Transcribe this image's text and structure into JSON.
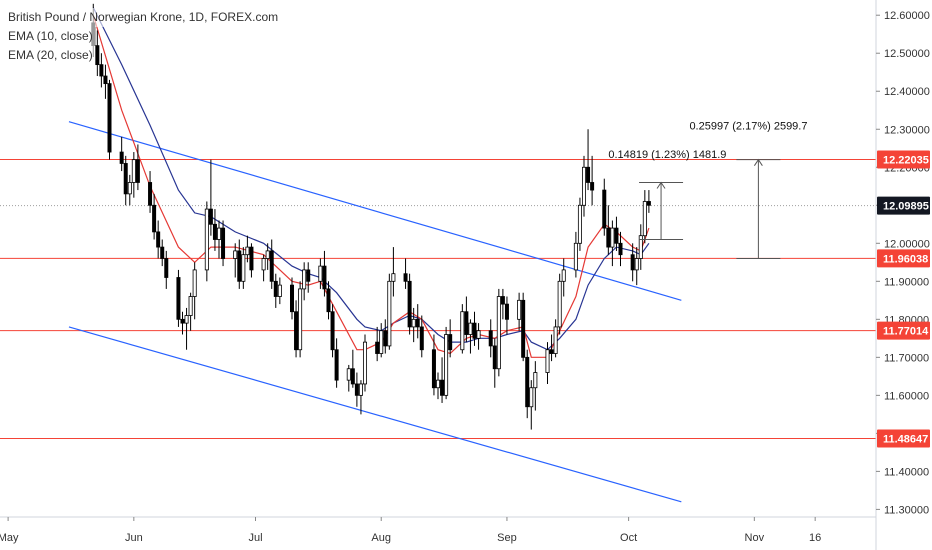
{
  "title": "British Pound / Norwegian Krone, 1D, FOREX.com",
  "indicators": [
    "EMA (10, close)",
    "EMA (20, close)"
  ],
  "colors": {
    "up_candle_fill": "#ffffff",
    "down_candle_fill": "#000000",
    "candle_outline": "#000000",
    "ema10": "#e53935",
    "ema20": "#283593",
    "hline": "#f44336",
    "channel": "#2962ff",
    "current_line": "#9e9e9e",
    "tag_red": "#f44336",
    "tag_black": "#131722",
    "measure": "#555555"
  },
  "chart_data": {
    "type": "candlestick",
    "symbol": "British Pound / Norwegian Krone",
    "timeframe": "1D",
    "source": "FOREX.com",
    "yrange": [
      11.28,
      12.64
    ],
    "x_ticks": [
      {
        "label": "May",
        "day": 0
      },
      {
        "label": "Jun",
        "day": 31
      },
      {
        "label": "Jul",
        "day": 61
      },
      {
        "label": "Aug",
        "day": 92
      },
      {
        "label": "Sep",
        "day": 123
      },
      {
        "label": "Oct",
        "day": 153
      },
      {
        "label": "Nov",
        "day": 184
      },
      {
        "label": "16",
        "day": 199
      }
    ],
    "xrange": [
      -2,
      214
    ],
    "y_ticks": [
      "12.60000",
      "12.50000",
      "12.40000",
      "12.30000",
      "12.20000",
      "12.10000",
      "12.00000",
      "11.90000",
      "11.80000",
      "11.70000",
      "11.60000",
      "11.50000",
      "11.40000",
      "11.30000"
    ],
    "horizontal_levels": [
      {
        "value": 12.22035,
        "label": "12.22035"
      },
      {
        "value": 11.96038,
        "label": "11.96038"
      },
      {
        "value": 11.77014,
        "label": "11.77014"
      },
      {
        "value": 11.48647,
        "label": "11.48647"
      }
    ],
    "current_price": {
      "value": 12.09895,
      "label": "12.09895"
    },
    "channel_lines": [
      {
        "x1": 15,
        "y1": 12.32,
        "x2": 166,
        "y2": 11.85
      },
      {
        "x1": 15,
        "y1": 11.78,
        "x2": 166,
        "y2": 11.32
      }
    ],
    "measurements": [
      {
        "x": 161,
        "from": 12.01,
        "to": 12.16,
        "label": "0.14819 (1.23%) 1481.9",
        "label_x": 148,
        "label_y": 12.235
      },
      {
        "x": 185,
        "from": 11.96,
        "to": 12.22,
        "label": "0.25997 (2.17%) 2599.7",
        "label_x": 168,
        "label_y": 12.31
      }
    ],
    "candles": [
      [
        21,
        12.58,
        12.63,
        12.49,
        12.52
      ],
      [
        22,
        12.52,
        12.56,
        12.44,
        12.47
      ],
      [
        23,
        12.47,
        12.5,
        12.41,
        12.44
      ],
      [
        24,
        12.44,
        12.47,
        12.38,
        12.42
      ],
      [
        25,
        12.42,
        12.43,
        12.22,
        12.24
      ],
      [
        28,
        12.24,
        12.28,
        12.19,
        12.21
      ],
      [
        29,
        12.21,
        12.23,
        12.1,
        12.13
      ],
      [
        30,
        12.13,
        12.18,
        12.1,
        12.16
      ],
      [
        31,
        12.16,
        12.24,
        12.12,
        12.22
      ],
      [
        32,
        12.22,
        12.26,
        12.14,
        12.16
      ],
      [
        35,
        12.16,
        12.19,
        12.08,
        12.1
      ],
      [
        36,
        12.1,
        12.13,
        12.01,
        12.03
      ],
      [
        37,
        12.03,
        12.06,
        11.96,
        11.99
      ],
      [
        38,
        11.99,
        12.01,
        11.94,
        11.96
      ],
      [
        39,
        11.96,
        11.98,
        11.88,
        11.91
      ],
      [
        42,
        11.91,
        11.93,
        11.78,
        11.8
      ],
      [
        43,
        11.8,
        11.82,
        11.76,
        11.79
      ],
      [
        44,
        11.79,
        11.83,
        11.72,
        11.81
      ],
      [
        45,
        11.81,
        11.87,
        11.77,
        11.86
      ],
      [
        46,
        11.86,
        11.95,
        11.8,
        11.93
      ],
      [
        49,
        11.93,
        12.11,
        11.9,
        12.09
      ],
      [
        50,
        12.09,
        12.22,
        12.02,
        12.05
      ],
      [
        51,
        12.05,
        12.09,
        11.98,
        12.01
      ],
      [
        52,
        12.01,
        12.06,
        11.96,
        12.04
      ],
      [
        53,
        12.04,
        12.06,
        11.94,
        11.96
      ],
      [
        56,
        11.96,
        12.0,
        11.91,
        11.98
      ],
      [
        57,
        11.98,
        12.01,
        11.88,
        11.9
      ],
      [
        58,
        11.9,
        11.99,
        11.88,
        11.97
      ],
      [
        59,
        11.97,
        12.02,
        11.95,
        11.99
      ],
      [
        60,
        11.99,
        12.0,
        11.91,
        11.93
      ],
      [
        63,
        11.93,
        11.97,
        11.9,
        11.96
      ],
      [
        64,
        11.96,
        12.0,
        11.93,
        11.98
      ],
      [
        65,
        11.98,
        12.01,
        11.88,
        11.9
      ],
      [
        66,
        11.9,
        11.92,
        11.83,
        11.86
      ],
      [
        67,
        11.86,
        11.91,
        11.84,
        11.89
      ],
      [
        70,
        11.89,
        11.91,
        11.8,
        11.82
      ],
      [
        71,
        11.82,
        11.85,
        11.7,
        11.72
      ],
      [
        72,
        11.72,
        11.9,
        11.7,
        11.88
      ],
      [
        73,
        11.88,
        11.95,
        11.85,
        11.93
      ],
      [
        74,
        11.93,
        11.95,
        11.87,
        11.9
      ],
      [
        77,
        11.9,
        11.96,
        11.88,
        11.94
      ],
      [
        78,
        11.94,
        11.98,
        11.86,
        11.88
      ],
      [
        79,
        11.88,
        11.9,
        11.8,
        11.82
      ],
      [
        80,
        11.82,
        11.84,
        11.7,
        11.72
      ],
      [
        81,
        11.72,
        11.75,
        11.62,
        11.64
      ],
      [
        84,
        11.64,
        11.68,
        11.61,
        11.67
      ],
      [
        85,
        11.67,
        11.72,
        11.62,
        11.63
      ],
      [
        86,
        11.63,
        11.66,
        11.57,
        11.6
      ],
      [
        87,
        11.6,
        11.64,
        11.55,
        11.63
      ],
      [
        88,
        11.63,
        11.76,
        11.61,
        11.74
      ],
      [
        91,
        11.74,
        11.78,
        11.69,
        11.71
      ],
      [
        92,
        11.71,
        11.79,
        11.7,
        11.77
      ],
      [
        93,
        11.77,
        11.8,
        11.71,
        11.73
      ],
      [
        94,
        11.73,
        11.92,
        11.72,
        11.9
      ],
      [
        95,
        11.9,
        11.99,
        11.86,
        11.92
      ],
      [
        98,
        11.92,
        11.96,
        11.88,
        11.9
      ],
      [
        99,
        11.9,
        11.92,
        11.76,
        11.78
      ],
      [
        100,
        11.78,
        11.83,
        11.74,
        11.8
      ],
      [
        101,
        11.8,
        11.84,
        11.75,
        11.78
      ],
      [
        102,
        11.78,
        11.81,
        11.7,
        11.72
      ],
      [
        105,
        11.72,
        11.76,
        11.6,
        11.62
      ],
      [
        106,
        11.62,
        11.66,
        11.59,
        11.64
      ],
      [
        107,
        11.64,
        11.7,
        11.58,
        11.6
      ],
      [
        108,
        11.6,
        11.78,
        11.59,
        11.76
      ],
      [
        109,
        11.76,
        11.8,
        11.7,
        11.72
      ],
      [
        112,
        11.72,
        11.84,
        11.71,
        11.82
      ],
      [
        113,
        11.82,
        11.86,
        11.74,
        11.76
      ],
      [
        114,
        11.76,
        11.8,
        11.71,
        11.79
      ],
      [
        115,
        11.79,
        11.82,
        11.73,
        11.75
      ],
      [
        116,
        11.75,
        11.79,
        11.72,
        11.77
      ],
      [
        119,
        11.77,
        11.8,
        11.7,
        11.73
      ],
      [
        120,
        11.73,
        11.75,
        11.62,
        11.67
      ],
      [
        121,
        11.67,
        11.88,
        11.65,
        11.86
      ],
      [
        122,
        11.86,
        11.88,
        11.8,
        11.84
      ],
      [
        123,
        11.84,
        11.86,
        11.76,
        11.8
      ],
      [
        126,
        11.8,
        11.87,
        11.77,
        11.85
      ],
      [
        127,
        11.85,
        11.87,
        11.69,
        11.7
      ],
      [
        128,
        11.7,
        11.72,
        11.54,
        11.57
      ],
      [
        129,
        11.57,
        11.64,
        11.51,
        11.62
      ],
      [
        130,
        11.62,
        11.69,
        11.56,
        11.66
      ],
      [
        133,
        11.66,
        11.74,
        11.63,
        11.72
      ],
      [
        134,
        11.72,
        11.76,
        11.69,
        11.71
      ],
      [
        135,
        11.71,
        11.8,
        11.7,
        11.78
      ],
      [
        136,
        11.78,
        11.92,
        11.76,
        11.9
      ],
      [
        137,
        11.9,
        11.96,
        11.86,
        11.93
      ],
      [
        140,
        11.93,
        12.03,
        11.91,
        12.0
      ],
      [
        141,
        12.0,
        12.12,
        11.98,
        12.1
      ],
      [
        142,
        12.1,
        12.23,
        12.07,
        12.2
      ],
      [
        143,
        12.2,
        12.3,
        12.14,
        12.16
      ],
      [
        144,
        12.16,
        12.23,
        12.1,
        12.14
      ],
      [
        147,
        12.14,
        12.17,
        12.02,
        12.04
      ],
      [
        148,
        12.04,
        12.1,
        11.97,
        11.99
      ],
      [
        149,
        11.99,
        12.06,
        11.94,
        12.04
      ],
      [
        150,
        12.04,
        12.07,
        11.98,
        12.0
      ],
      [
        151,
        12.0,
        12.03,
        11.94,
        11.97
      ],
      [
        154,
        11.97,
        12.0,
        11.9,
        11.93
      ],
      [
        155,
        11.93,
        11.99,
        11.89,
        11.96
      ],
      [
        156,
        11.96,
        12.05,
        11.93,
        12.02
      ],
      [
        157,
        12.02,
        12.14,
        12.0,
        12.11
      ],
      [
        158,
        12.11,
        12.14,
        12.08,
        12.1
      ]
    ],
    "ema10": [
      [
        21,
        12.6
      ],
      [
        28,
        12.35
      ],
      [
        35,
        12.15
      ],
      [
        42,
        11.99
      ],
      [
        46,
        11.95
      ],
      [
        50,
        11.99
      ],
      [
        56,
        11.99
      ],
      [
        63,
        11.97
      ],
      [
        70,
        11.9
      ],
      [
        74,
        11.89
      ],
      [
        77,
        11.9
      ],
      [
        81,
        11.82
      ],
      [
        86,
        11.72
      ],
      [
        88,
        11.72
      ],
      [
        92,
        11.74
      ],
      [
        95,
        11.79
      ],
      [
        99,
        11.82
      ],
      [
        102,
        11.8
      ],
      [
        106,
        11.72
      ],
      [
        109,
        11.71
      ],
      [
        113,
        11.75
      ],
      [
        116,
        11.76
      ],
      [
        120,
        11.75
      ],
      [
        123,
        11.77
      ],
      [
        127,
        11.78
      ],
      [
        129,
        11.7
      ],
      [
        133,
        11.7
      ],
      [
        136,
        11.77
      ],
      [
        140,
        11.86
      ],
      [
        143,
        11.99
      ],
      [
        147,
        12.05
      ],
      [
        150,
        12.03
      ],
      [
        154,
        11.99
      ],
      [
        156,
        11.98
      ],
      [
        158,
        12.04
      ]
    ],
    "ema20": [
      [
        21,
        12.62
      ],
      [
        28,
        12.47
      ],
      [
        35,
        12.31
      ],
      [
        42,
        12.14
      ],
      [
        46,
        12.08
      ],
      [
        50,
        12.07
      ],
      [
        56,
        12.03
      ],
      [
        63,
        12.0
      ],
      [
        70,
        11.94
      ],
      [
        74,
        11.92
      ],
      [
        77,
        11.91
      ],
      [
        81,
        11.87
      ],
      [
        86,
        11.8
      ],
      [
        88,
        11.78
      ],
      [
        92,
        11.77
      ],
      [
        95,
        11.79
      ],
      [
        99,
        11.81
      ],
      [
        102,
        11.8
      ],
      [
        106,
        11.76
      ],
      [
        109,
        11.74
      ],
      [
        113,
        11.74
      ],
      [
        116,
        11.75
      ],
      [
        120,
        11.75
      ],
      [
        123,
        11.76
      ],
      [
        127,
        11.77
      ],
      [
        129,
        11.74
      ],
      [
        133,
        11.72
      ],
      [
        136,
        11.75
      ],
      [
        140,
        11.8
      ],
      [
        143,
        11.89
      ],
      [
        147,
        11.96
      ],
      [
        150,
        11.99
      ],
      [
        154,
        11.98
      ],
      [
        156,
        11.97
      ],
      [
        158,
        12.0
      ]
    ]
  }
}
